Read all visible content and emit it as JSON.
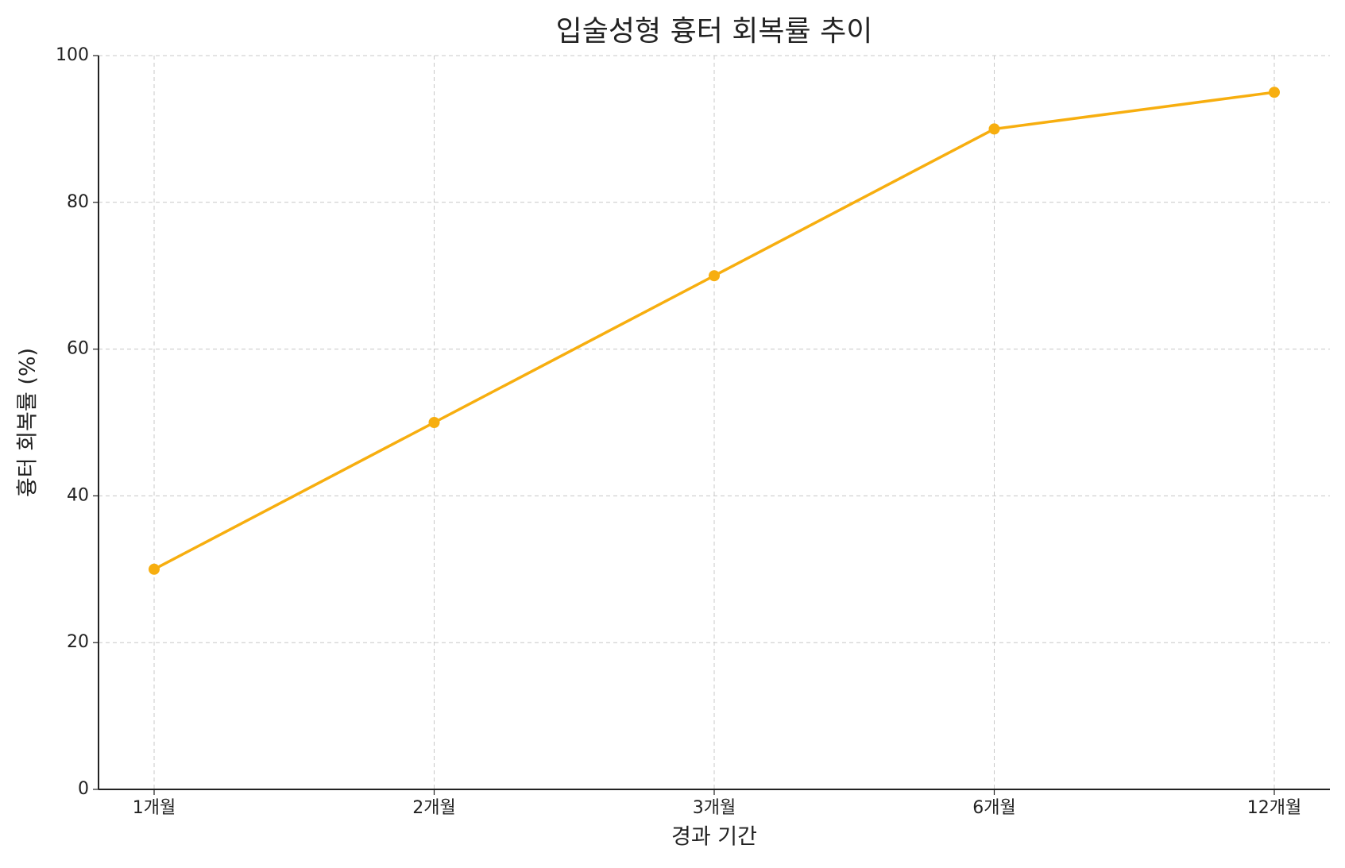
{
  "chart_data": {
    "type": "line",
    "title": "입술성형 흉터 회복률 추이",
    "x_label": "경과 기간",
    "y_label": "흉터 회복률 (%)",
    "categories": [
      "1개월",
      "2개월",
      "3개월",
      "6개월",
      "12개월"
    ],
    "series": [
      {
        "name": "흉터 회복률",
        "color": "#f7ae0f",
        "values": [
          30,
          50,
          70,
          90,
          95
        ]
      }
    ],
    "ylim": [
      0,
      100
    ],
    "yticks": [
      0,
      20,
      40,
      60,
      80,
      100
    ],
    "grid": true
  }
}
